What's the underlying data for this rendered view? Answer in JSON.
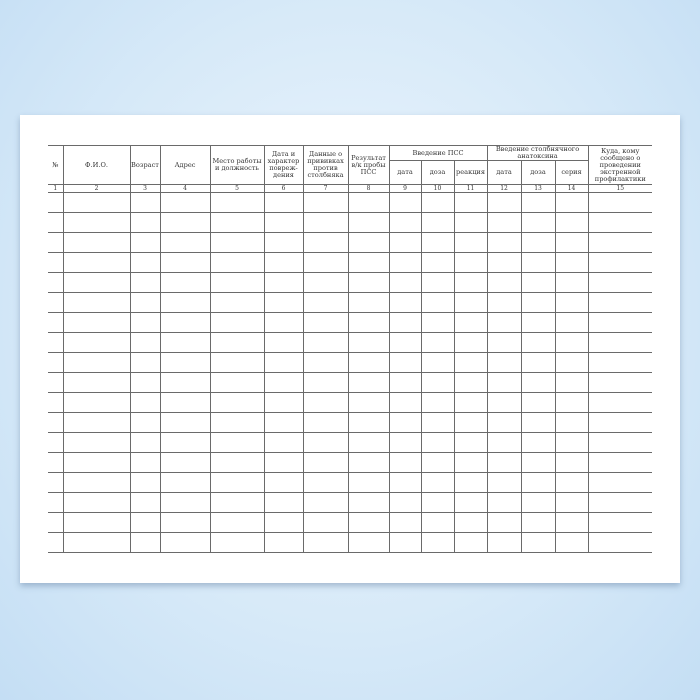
{
  "document": {
    "headers": {
      "c1": "№",
      "c2": "Ф.И.О.",
      "c3": "Возраст",
      "c4": "Адрес",
      "c5": "Место работы и должность",
      "c6": "Дата и характер повреж-дения",
      "c7": "Данные о прививках против столбняка",
      "c8": "Результат в/к пробы ПСС",
      "group_pss": "Введение ПСС",
      "c9": "дата",
      "c10": "доза",
      "c11": "реакция",
      "group_anatoxin": "Введение столбнячного анатоксина",
      "c12": "дата",
      "c13": "доза",
      "c14": "серия",
      "c15": "Куда, кому сообщено о проведении экстренной профилактики"
    },
    "column_numbers": [
      "1",
      "2",
      "3",
      "4",
      "5",
      "6",
      "7",
      "8",
      "9",
      "10",
      "11",
      "12",
      "13",
      "14",
      "15"
    ]
  }
}
